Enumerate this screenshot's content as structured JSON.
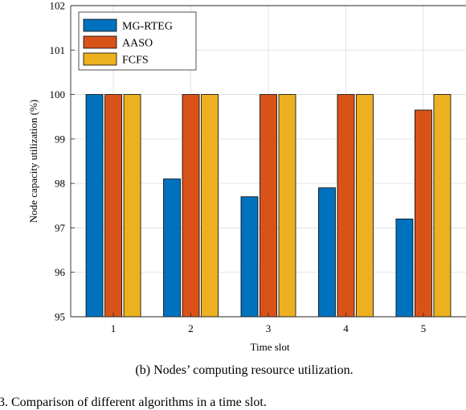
{
  "chart_data": {
    "type": "bar",
    "categories": [
      "1",
      "2",
      "3",
      "4",
      "5"
    ],
    "series": [
      {
        "name": "MG-RTEG",
        "values": [
          100,
          98.1,
          97.7,
          97.9,
          97.2
        ]
      },
      {
        "name": "AASO",
        "values": [
          100,
          100,
          100,
          100,
          99.65
        ]
      },
      {
        "name": "FCFS",
        "values": [
          100,
          100,
          100,
          100,
          100
        ]
      }
    ],
    "colors": [
      "#0072BD",
      "#D95319",
      "#EDB120"
    ],
    "xlabel": "Time slot",
    "ylabel": "Node capacity utilization (%)",
    "ylim": [
      95,
      102
    ],
    "yticks": [
      "95",
      "96",
      "97",
      "98",
      "99",
      "100",
      "101",
      "102"
    ],
    "grid": true,
    "legend_position": "top-left"
  },
  "captions": {
    "subfigure": "(b) Nodes’ computing resource utilization.",
    "figure": "3.  Comparison of different algorithms in a time slot."
  }
}
